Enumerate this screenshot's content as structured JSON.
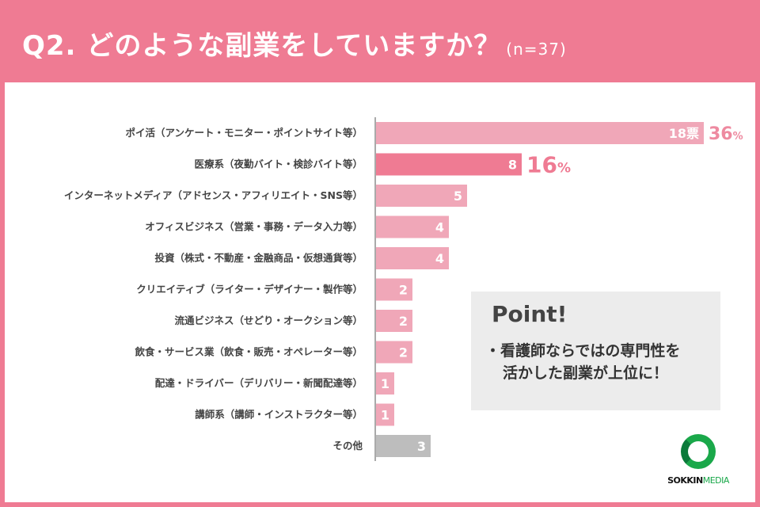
{
  "header": {
    "title": "Q2. どのような副業をしていますか？",
    "n_label": "(n=37)"
  },
  "colors": {
    "header_bg": "#ef7b93",
    "bar_default": "#f0a7b8",
    "bar_highlight": "#ef7b93",
    "bar_other": "#bdbdbd",
    "pct_top": "#ee8aa0",
    "pct_second": "#ef7b93"
  },
  "chart_data": {
    "type": "bar",
    "orientation": "horizontal",
    "categories": [
      "ポイ活（アンケート・モニター・ポイントサイト等）",
      "医療系（夜勤バイト・検診バイト等）",
      "インターネットメディア（アドセンス・アフィリエイト・SNS等）",
      "オフィスビジネス（営業・事務・データ入力等）",
      "投資（株式・不動産・金融商品・仮想通貨等）",
      "クリエイティブ（ライター・デザイナー・製作等）",
      "流通ビジネス（せどり・オークション等）",
      "飲食・サービス業（飲食・販売・オペレーター等）",
      "配達・ドライバー（デリバリー・新聞配達等）",
      "講師系（講師・インストラクター等）",
      "その他"
    ],
    "values": [
      18,
      8,
      5,
      4,
      4,
      2,
      2,
      2,
      1,
      1,
      3
    ],
    "value_labels": [
      "18票",
      "8",
      "5",
      "4",
      "4",
      "2",
      "2",
      "2",
      "1",
      "1",
      "3"
    ],
    "percent_labels": [
      {
        "index": 0,
        "number": "36",
        "unit": "%"
      },
      {
        "index": 1,
        "number": "16",
        "unit": "%"
      }
    ],
    "bar_styles": [
      "default",
      "highlight",
      "default",
      "default",
      "default",
      "default",
      "default",
      "default",
      "default",
      "default",
      "other"
    ],
    "xlim": [
      0,
      18
    ]
  },
  "point": {
    "title": "Point!",
    "line1": "・看護師ならではの専門性を",
    "line2": "活かした副業が上位に！"
  },
  "logo": {
    "brand": "SOKKIN",
    "brand_suffix": "MEDIA"
  }
}
